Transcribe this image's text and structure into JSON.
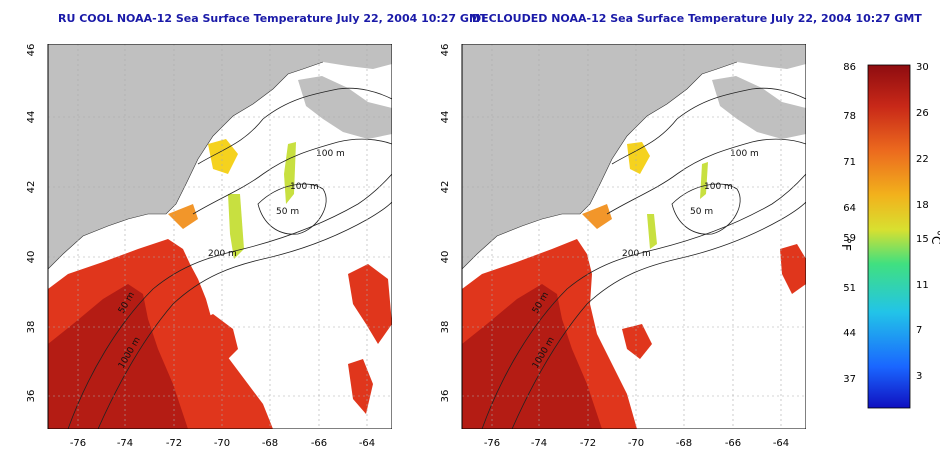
{
  "panels": [
    {
      "title": "RU COOL NOAA-12 Sea Surface Temperature July 22, 2004 10:27 GMT",
      "contour_labels": [
        "100 m",
        "100 m",
        "50 m",
        "200 m",
        "50 m",
        "1000 m"
      ]
    },
    {
      "title": "DECLOUDED NOAA-12 Sea Surface Temperature July 22, 2004 10:27 GMT",
      "contour_labels": [
        "100 m",
        "100 m",
        "50 m",
        "200 m",
        "50 m",
        "1000 m"
      ]
    }
  ],
  "axes": {
    "x_ticks": [
      "-76",
      "-74",
      "-72",
      "-70",
      "-68",
      "-66",
      "-64"
    ],
    "y_ticks": [
      "36",
      "38",
      "40",
      "42",
      "44",
      "46"
    ],
    "xlim": [
      -77,
      -63
    ],
    "ylim": [
      35,
      46
    ]
  },
  "colorbar": {
    "fahrenheit_ticks": [
      "86",
      "78",
      "71",
      "64",
      "59",
      "51",
      "44",
      "37"
    ],
    "celsius_ticks": [
      "30",
      "26",
      "22",
      "18",
      "15",
      "11",
      "7",
      "3"
    ],
    "fahrenheit_label": "°F",
    "celsius_label": "°C",
    "range_c": [
      0,
      30
    ],
    "colors": [
      "#1010c0",
      "#1a66ff",
      "#22c4e8",
      "#40e080",
      "#d8e030",
      "#f2b21c",
      "#ec6a1e",
      "#c82818",
      "#8e0c10"
    ]
  },
  "map_colors": {
    "land": "#c0c0c0",
    "no_data": "#ffffff",
    "sst_warm": "#e0361c",
    "sst_hot": "#b41c14",
    "sst_cool": "#f5d21e",
    "sst_mid": "#f2962a"
  }
}
